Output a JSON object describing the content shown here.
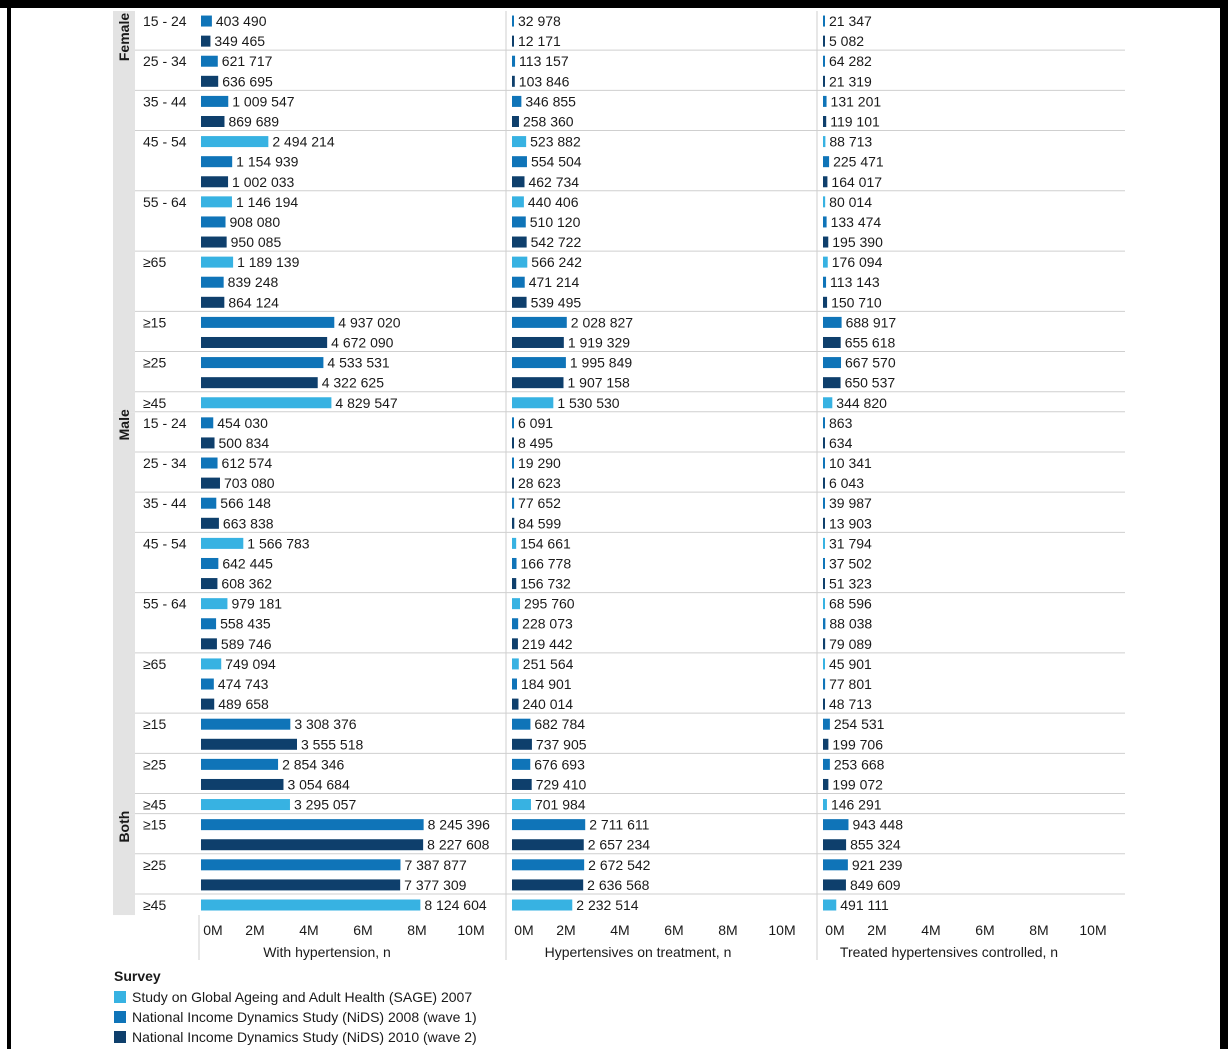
{
  "chart_data": {
    "type": "bar",
    "orientation": "horizontal",
    "panels": [
      {
        "xlabel": "With hypertension, n",
        "xlim": [
          0,
          10000000
        ]
      },
      {
        "xlabel": "Hypertensives on treatment, n",
        "xlim": [
          0,
          10000000
        ]
      },
      {
        "xlabel": "Treated hypertensives controlled, n",
        "xlim": [
          0,
          10000000
        ]
      }
    ],
    "xticks": [
      "0M",
      "2M",
      "4M",
      "6M",
      "8M",
      "10M"
    ],
    "xtick_values": [
      0,
      2000000,
      4000000,
      6000000,
      8000000,
      10000000
    ],
    "series": [
      {
        "name": "Study on Global Ageing and Adult Health (SAGE) 2007",
        "color": "#37b2e2"
      },
      {
        "name": "National Income Dynamics Study (NiDS) 2008 (wave 1)",
        "color": "#0f74b8"
      },
      {
        "name": "National Income Dynamics Study (NiDS) 2010 (wave 2)",
        "color": "#0e3f6c"
      }
    ],
    "groups": [
      {
        "sex": "Female",
        "rows": [
          {
            "age": "15 - 24",
            "bars": [
              {
                "series": 1,
                "values": [
                  403490,
                  32978,
                  21347
                ],
                "labels": [
                  "403 490",
                  "32 978",
                  "21 347"
                ]
              },
              {
                "series": 2,
                "values": [
                  349465,
                  12171,
                  5082
                ],
                "labels": [
                  "349 465",
                  "12 171",
                  "5 082"
                ]
              }
            ]
          },
          {
            "age": "25 - 34",
            "bars": [
              {
                "series": 1,
                "values": [
                  621717,
                  113157,
                  64282
                ],
                "labels": [
                  "621 717",
                  "113 157",
                  "64 282"
                ]
              },
              {
                "series": 2,
                "values": [
                  636695,
                  103846,
                  21319
                ],
                "labels": [
                  "636 695",
                  "103 846",
                  "21 319"
                ]
              }
            ]
          },
          {
            "age": "35 - 44",
            "bars": [
              {
                "series": 1,
                "values": [
                  1009547,
                  346855,
                  131201
                ],
                "labels": [
                  "1 009 547",
                  "346 855",
                  "131 201"
                ]
              },
              {
                "series": 2,
                "values": [
                  869689,
                  258360,
                  119101
                ],
                "labels": [
                  "869 689",
                  "258 360",
                  "119 101"
                ]
              }
            ]
          },
          {
            "age": "45 - 54",
            "bars": [
              {
                "series": 0,
                "values": [
                  2494214,
                  523882,
                  88713
                ],
                "labels": [
                  "2 494 214",
                  "523 882",
                  "88 713"
                ]
              },
              {
                "series": 1,
                "values": [
                  1154939,
                  554504,
                  225471
                ],
                "labels": [
                  "1 154 939",
                  "554 504",
                  "225 471"
                ]
              },
              {
                "series": 2,
                "values": [
                  1002033,
                  462734,
                  164017
                ],
                "labels": [
                  "1 002 033",
                  "462 734",
                  "164 017"
                ]
              }
            ]
          },
          {
            "age": "55 - 64",
            "bars": [
              {
                "series": 0,
                "values": [
                  1146194,
                  440406,
                  80014
                ],
                "labels": [
                  "1 146 194",
                  "440 406",
                  "80 014"
                ]
              },
              {
                "series": 1,
                "values": [
                  908080,
                  510120,
                  133474
                ],
                "labels": [
                  "908 080",
                  "510 120",
                  "133 474"
                ]
              },
              {
                "series": 2,
                "values": [
                  950085,
                  542722,
                  195390
                ],
                "labels": [
                  "950 085",
                  "542 722",
                  "195 390"
                ]
              }
            ]
          },
          {
            "age": "≥65",
            "bars": [
              {
                "series": 0,
                "values": [
                  1189139,
                  566242,
                  176094
                ],
                "labels": [
                  "1 189 139",
                  "566 242",
                  "176 094"
                ]
              },
              {
                "series": 1,
                "values": [
                  839248,
                  471214,
                  113143
                ],
                "labels": [
                  "839 248",
                  "471 214",
                  "113 143"
                ]
              },
              {
                "series": 2,
                "values": [
                  864124,
                  539495,
                  150710
                ],
                "labels": [
                  "864 124",
                  "539 495",
                  "150 710"
                ]
              }
            ]
          },
          {
            "age": "≥15",
            "bars": [
              {
                "series": 1,
                "values": [
                  4937020,
                  2028827,
                  688917
                ],
                "labels": [
                  "4 937 020",
                  "2 028 827",
                  "688 917"
                ]
              },
              {
                "series": 2,
                "values": [
                  4672090,
                  1919329,
                  655618
                ],
                "labels": [
                  "4 672 090",
                  "1 919 329",
                  "655 618"
                ]
              }
            ]
          },
          {
            "age": "≥25",
            "bars": [
              {
                "series": 1,
                "values": [
                  4533531,
                  1995849,
                  667570
                ],
                "labels": [
                  "4 533 531",
                  "1 995 849",
                  "667 570"
                ]
              },
              {
                "series": 2,
                "values": [
                  4322625,
                  1907158,
                  650537
                ],
                "labels": [
                  "4 322 625",
                  "1 907 158",
                  "650 537"
                ]
              }
            ]
          },
          {
            "age": "≥45",
            "bars": [
              {
                "series": 0,
                "values": [
                  4829547,
                  1530530,
                  344820
                ],
                "labels": [
                  "4 829 547",
                  "1 530 530",
                  "344 820"
                ]
              }
            ]
          }
        ]
      },
      {
        "sex": "Male",
        "rows": [
          {
            "age": "15 - 24",
            "bars": [
              {
                "series": 1,
                "values": [
                  454030,
                  6091,
                  863
                ],
                "labels": [
                  "454 030",
                  "6 091",
                  "863"
                ]
              },
              {
                "series": 2,
                "values": [
                  500834,
                  8495,
                  634
                ],
                "labels": [
                  "500 834",
                  "8 495",
                  "634"
                ]
              }
            ]
          },
          {
            "age": "25 - 34",
            "bars": [
              {
                "series": 1,
                "values": [
                  612574,
                  19290,
                  10341
                ],
                "labels": [
                  "612 574",
                  "19 290",
                  "10 341"
                ]
              },
              {
                "series": 2,
                "values": [
                  703080,
                  28623,
                  6043
                ],
                "labels": [
                  "703 080",
                  "28 623",
                  "6 043"
                ]
              }
            ]
          },
          {
            "age": "35 - 44",
            "bars": [
              {
                "series": 1,
                "values": [
                  566148,
                  77652,
                  39987
                ],
                "labels": [
                  "566 148",
                  "77 652",
                  "39 987"
                ]
              },
              {
                "series": 2,
                "values": [
                  663838,
                  84599,
                  13903
                ],
                "labels": [
                  "663 838",
                  "84 599",
                  "13 903"
                ]
              }
            ]
          },
          {
            "age": "45 - 54",
            "bars": [
              {
                "series": 0,
                "values": [
                  1566783,
                  154661,
                  31794
                ],
                "labels": [
                  "1 566 783",
                  "154 661",
                  "31 794"
                ]
              },
              {
                "series": 1,
                "values": [
                  642445,
                  166778,
                  37502
                ],
                "labels": [
                  "642 445",
                  "166 778",
                  "37 502"
                ]
              },
              {
                "series": 2,
                "values": [
                  608362,
                  156732,
                  51323
                ],
                "labels": [
                  "608 362",
                  "156 732",
                  "51 323"
                ]
              }
            ]
          },
          {
            "age": "55 - 64",
            "bars": [
              {
                "series": 0,
                "values": [
                  979181,
                  295760,
                  68596
                ],
                "labels": [
                  "979 181",
                  "295 760",
                  "68 596"
                ]
              },
              {
                "series": 1,
                "values": [
                  558435,
                  228073,
                  88038
                ],
                "labels": [
                  "558 435",
                  "228 073",
                  "88 038"
                ]
              },
              {
                "series": 2,
                "values": [
                  589746,
                  219442,
                  79089
                ],
                "labels": [
                  "589 746",
                  "219 442",
                  "79 089"
                ]
              }
            ]
          },
          {
            "age": "≥65",
            "bars": [
              {
                "series": 0,
                "values": [
                  749094,
                  251564,
                  45901
                ],
                "labels": [
                  "749 094",
                  "251 564",
                  "45 901"
                ]
              },
              {
                "series": 1,
                "values": [
                  474743,
                  184901,
                  77801
                ],
                "labels": [
                  "474 743",
                  "184 901",
                  "77 801"
                ]
              },
              {
                "series": 2,
                "values": [
                  489658,
                  240014,
                  48713
                ],
                "labels": [
                  "489 658",
                  "240 014",
                  "48 713"
                ]
              }
            ]
          },
          {
            "age": "≥15",
            "bars": [
              {
                "series": 1,
                "values": [
                  3308376,
                  682784,
                  254531
                ],
                "labels": [
                  "3 308 376",
                  "682 784",
                  "254 531"
                ]
              },
              {
                "series": 2,
                "values": [
                  3555518,
                  737905,
                  199706
                ],
                "labels": [
                  "3 555 518",
                  "737 905",
                  "199 706"
                ]
              }
            ]
          },
          {
            "age": "≥25",
            "bars": [
              {
                "series": 1,
                "values": [
                  2854346,
                  676693,
                  253668
                ],
                "labels": [
                  "2 854 346",
                  "676 693",
                  "253 668"
                ]
              },
              {
                "series": 2,
                "values": [
                  3054684,
                  729410,
                  199072
                ],
                "labels": [
                  "3 054 684",
                  "729 410",
                  "199 072"
                ]
              }
            ]
          },
          {
            "age": "≥45",
            "bars": [
              {
                "series": 0,
                "values": [
                  3295057,
                  701984,
                  146291
                ],
                "labels": [
                  "3 295 057",
                  "701 984",
                  "146 291"
                ]
              }
            ]
          }
        ]
      },
      {
        "sex": "Both",
        "rows": [
          {
            "age": "≥15",
            "bars": [
              {
                "series": 1,
                "values": [
                  8245396,
                  2711611,
                  943448
                ],
                "labels": [
                  "8 245 396",
                  "2 711 611",
                  "943 448"
                ]
              },
              {
                "series": 2,
                "values": [
                  8227608,
                  2657234,
                  855324
                ],
                "labels": [
                  "8 227 608",
                  "2 657 234",
                  "855 324"
                ]
              }
            ]
          },
          {
            "age": "≥25",
            "bars": [
              {
                "series": 1,
                "values": [
                  7387877,
                  2672542,
                  921239
                ],
                "labels": [
                  "7 387 877",
                  "2 672 542",
                  "921 239"
                ]
              },
              {
                "series": 2,
                "values": [
                  7377309,
                  2636568,
                  849609
                ],
                "labels": [
                  "7 377 309",
                  "2 636 568",
                  "849 609"
                ]
              }
            ]
          },
          {
            "age": "≥45",
            "bars": [
              {
                "series": 0,
                "values": [
                  8124604,
                  2232514,
                  491111
                ],
                "labels": [
                  "8 124 604",
                  "2 232 514",
                  "491 111"
                ]
              }
            ]
          }
        ]
      }
    ],
    "legend": {
      "title": "Survey",
      "placement": "bottom-left"
    }
  }
}
